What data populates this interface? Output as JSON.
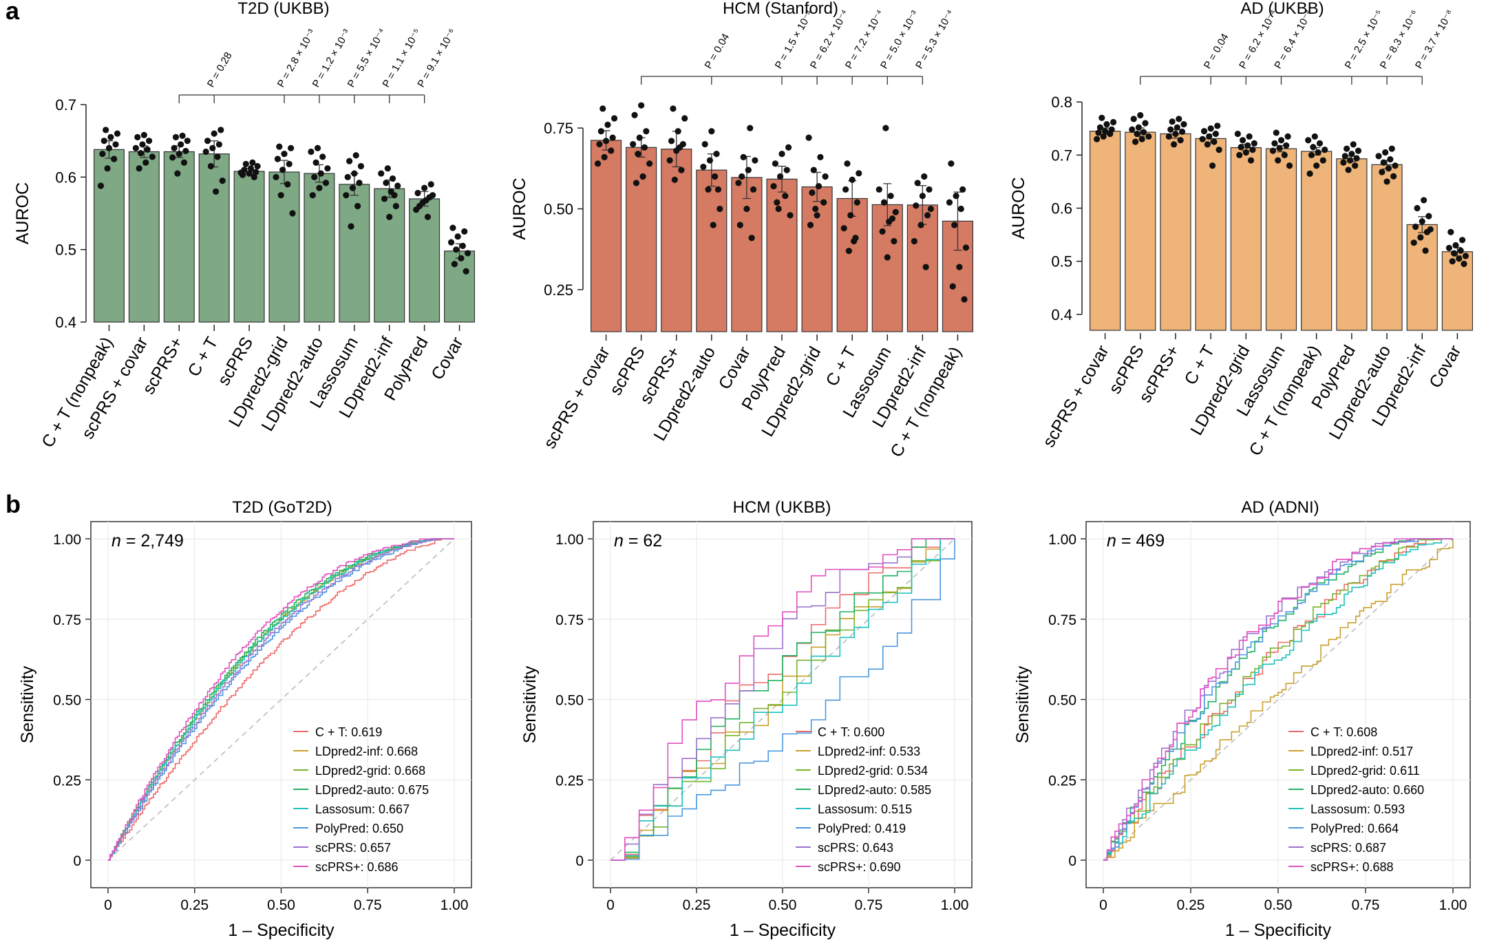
{
  "panel_labels": {
    "a": "a",
    "b": "b"
  },
  "chart_data": [
    {
      "type": "bar",
      "panel": "a",
      "title": "T2D (UKBB)",
      "ylabel": "AUROC",
      "xlabel": "",
      "ylim": [
        0.4,
        0.7
      ],
      "yticks": [
        0.4,
        0.5,
        0.6,
        0.7
      ],
      "tick_labels": [
        "0.4",
        "0.5",
        "0.6",
        "0.7"
      ],
      "color": "#7fa884",
      "categories": [
        "C + T (nonpeak)",
        "scPRS + covar",
        "scPRS+",
        "C + T",
        "scPRS",
        "LDpred2-grid",
        "LDpred2-auto",
        "Lassosum",
        "LDpred2-inf",
        "PolyPred",
        "Covar"
      ],
      "values": [
        0.638,
        0.635,
        0.635,
        0.632,
        0.608,
        0.607,
        0.605,
        0.59,
        0.584,
        0.57,
        0.498
      ],
      "errors": [
        0.012,
        0.008,
        0.008,
        0.018,
        0.004,
        0.016,
        0.012,
        0.015,
        0.012,
        0.01,
        0.01
      ],
      "points": [
        [
          0.588,
          0.612,
          0.625,
          0.632,
          0.64,
          0.645,
          0.65,
          0.655,
          0.66,
          0.665
        ],
        [
          0.612,
          0.62,
          0.628,
          0.633,
          0.638,
          0.64,
          0.645,
          0.65,
          0.655,
          0.658
        ],
        [
          0.605,
          0.62,
          0.627,
          0.632,
          0.636,
          0.64,
          0.645,
          0.65,
          0.655,
          0.657
        ],
        [
          0.58,
          0.595,
          0.615,
          0.628,
          0.635,
          0.64,
          0.645,
          0.65,
          0.66,
          0.665
        ],
        [
          0.6,
          0.603,
          0.605,
          0.607,
          0.61,
          0.612,
          0.615,
          0.618,
          0.62,
          0.606
        ],
        [
          0.55,
          0.575,
          0.59,
          0.6,
          0.61,
          0.618,
          0.625,
          0.632,
          0.64,
          0.642
        ],
        [
          0.575,
          0.585,
          0.592,
          0.6,
          0.605,
          0.612,
          0.62,
          0.628,
          0.635,
          0.64
        ],
        [
          0.532,
          0.56,
          0.575,
          0.585,
          0.592,
          0.6,
          0.605,
          0.615,
          0.622,
          0.63
        ],
        [
          0.545,
          0.56,
          0.57,
          0.58,
          0.588,
          0.592,
          0.598,
          0.605,
          0.612,
          0.575
        ],
        [
          0.545,
          0.555,
          0.565,
          0.572,
          0.578,
          0.585,
          0.59,
          0.56,
          0.568,
          0.575
        ],
        [
          0.47,
          0.48,
          0.488,
          0.495,
          0.5,
          0.505,
          0.51,
          0.518,
          0.525,
          0.53
        ]
      ],
      "comparison": {
        "from": "scPRS+",
        "targets": [
          "C + T",
          "LDpred2-grid",
          "LDpred2-auto",
          "Lassosum",
          "LDpred2-inf",
          "PolyPred"
        ],
        "labels": [
          "P = 0.28",
          "P = 2.8 × 10⁻³",
          "P = 1.2 × 10⁻³",
          "P = 5.5 × 10⁻⁴",
          "P = 1.1 × 10⁻⁵",
          "P = 9.1 × 10⁻⁶"
        ]
      }
    },
    {
      "type": "bar",
      "panel": "a",
      "title": "HCM (Stanford)",
      "ylabel": "AUROC",
      "xlabel": "",
      "ylim": [
        0.12,
        0.88
      ],
      "yticks": [
        0.25,
        0.5,
        0.75
      ],
      "tick_labels": [
        "0.25",
        "0.50",
        "0.75"
      ],
      "color": "#d57b63",
      "categories": [
        "scPRS + covar",
        "scPRS",
        "scPRS+",
        "LDpred2-auto",
        "Covar",
        "PolyPred",
        "LDpred2-grid",
        "C + T",
        "Lassosum",
        "LDpred2-inf",
        "C + T (nonpeak)"
      ],
      "values": [
        0.712,
        0.69,
        0.685,
        0.62,
        0.597,
        0.592,
        0.568,
        0.532,
        0.513,
        0.512,
        0.462
      ],
      "errors": [
        0.03,
        0.03,
        0.055,
        0.05,
        0.065,
        0.04,
        0.045,
        0.055,
        0.065,
        0.06,
        0.09
      ],
      "points": [
        [
          0.64,
          0.66,
          0.68,
          0.7,
          0.71,
          0.72,
          0.74,
          0.76,
          0.78,
          0.81
        ],
        [
          0.58,
          0.6,
          0.64,
          0.67,
          0.69,
          0.7,
          0.72,
          0.74,
          0.79,
          0.82
        ],
        [
          0.59,
          0.62,
          0.65,
          0.68,
          0.7,
          0.71,
          0.74,
          0.78,
          0.81,
          0.69
        ],
        [
          0.45,
          0.5,
          0.56,
          0.6,
          0.63,
          0.65,
          0.67,
          0.7,
          0.74,
          0.56
        ],
        [
          0.41,
          0.45,
          0.5,
          0.56,
          0.6,
          0.62,
          0.65,
          0.66,
          0.75,
          0.58
        ],
        [
          0.48,
          0.5,
          0.54,
          0.57,
          0.6,
          0.62,
          0.64,
          0.67,
          0.69,
          0.52
        ],
        [
          0.45,
          0.48,
          0.52,
          0.55,
          0.57,
          0.6,
          0.62,
          0.66,
          0.72,
          0.5
        ],
        [
          0.37,
          0.41,
          0.44,
          0.48,
          0.52,
          0.56,
          0.59,
          0.61,
          0.64,
          0.4
        ],
        [
          0.35,
          0.4,
          0.43,
          0.46,
          0.49,
          0.52,
          0.54,
          0.56,
          0.75,
          0.47
        ],
        [
          0.32,
          0.4,
          0.45,
          0.48,
          0.51,
          0.54,
          0.56,
          0.58,
          0.6,
          0.5
        ],
        [
          0.22,
          0.26,
          0.32,
          0.38,
          0.45,
          0.5,
          0.52,
          0.54,
          0.56,
          0.64
        ]
      ],
      "comparison": {
        "from": "scPRS",
        "targets": [
          "LDpred2-auto",
          "PolyPred",
          "LDpred2-grid",
          "C + T",
          "Lassosum",
          "LDpred2-inf"
        ],
        "labels": [
          "P = 0.04",
          "P = 1.5 × 10⁻³",
          "P = 6.2 × 10⁻⁴",
          "P = 7.2 × 10⁻⁴",
          "P = 5.0 × 10⁻³",
          "P = 5.3 × 10⁻⁴"
        ]
      }
    },
    {
      "type": "bar",
      "panel": "a",
      "title": "AD (UKBB)",
      "ylabel": "AUROC",
      "xlabel": "",
      "ylim": [
        0.37,
        0.83
      ],
      "yticks": [
        0.4,
        0.5,
        0.6,
        0.7,
        0.8
      ],
      "tick_labels": [
        "0.4",
        "0.5",
        "0.6",
        "0.7",
        "0.8"
      ],
      "color": "#eeb479",
      "categories": [
        "scPRS + covar",
        "scPRS",
        "scPRS+",
        "C + T",
        "LDpred2-grid",
        "Lassosum",
        "C + T (nonpeak)",
        "PolyPred",
        "LDpred2-auto",
        "LDpred2-inf",
        "Covar"
      ],
      "values": [
        0.745,
        0.743,
        0.74,
        0.731,
        0.714,
        0.712,
        0.707,
        0.693,
        0.682,
        0.569,
        0.518
      ],
      "errors": [
        0.006,
        0.008,
        0.008,
        0.008,
        0.006,
        0.006,
        0.007,
        0.005,
        0.008,
        0.015,
        0.008
      ],
      "points": [
        [
          0.73,
          0.735,
          0.74,
          0.742,
          0.745,
          0.748,
          0.752,
          0.758,
          0.762,
          0.77
        ],
        [
          0.725,
          0.73,
          0.735,
          0.74,
          0.743,
          0.748,
          0.752,
          0.76,
          0.768,
          0.775
        ],
        [
          0.72,
          0.728,
          0.735,
          0.74,
          0.744,
          0.748,
          0.752,
          0.758,
          0.763,
          0.768
        ],
        [
          0.68,
          0.71,
          0.72,
          0.725,
          0.73,
          0.735,
          0.74,
          0.745,
          0.75,
          0.755
        ],
        [
          0.69,
          0.7,
          0.705,
          0.71,
          0.715,
          0.718,
          0.722,
          0.728,
          0.735,
          0.74
        ],
        [
          0.68,
          0.69,
          0.7,
          0.708,
          0.713,
          0.718,
          0.722,
          0.728,
          0.735,
          0.742
        ],
        [
          0.665,
          0.68,
          0.69,
          0.7,
          0.705,
          0.71,
          0.715,
          0.722,
          0.728,
          0.735
        ],
        [
          0.672,
          0.68,
          0.686,
          0.69,
          0.694,
          0.698,
          0.702,
          0.708,
          0.712,
          0.72
        ],
        [
          0.65,
          0.66,
          0.668,
          0.675,
          0.68,
          0.686,
          0.692,
          0.698,
          0.705,
          0.712
        ],
        [
          0.52,
          0.535,
          0.545,
          0.555,
          0.565,
          0.575,
          0.585,
          0.6,
          0.615,
          0.56
        ],
        [
          0.495,
          0.5,
          0.505,
          0.51,
          0.515,
          0.52,
          0.525,
          0.53,
          0.54,
          0.555
        ]
      ],
      "comparison": {
        "from": "scPRS",
        "targets": [
          "C + T",
          "LDpred2-grid",
          "Lassosum",
          "PolyPred",
          "LDpred2-auto",
          "LDpred2-inf"
        ],
        "labels": [
          "P = 0.04",
          "P = 6.2 × 10⁻⁴",
          "P = 6.4 × 10⁻⁴",
          "P = 2.5 × 10⁻⁵",
          "P = 8.3 × 10⁻⁶",
          "P = 3.7 × 10⁻⁸"
        ]
      }
    },
    {
      "type": "line",
      "panel": "b",
      "title": "T2D (GoT2D)",
      "xlabel": "1 – Specificity",
      "ylabel": "Sensitivity",
      "xlim": [
        0,
        1
      ],
      "ylim": [
        0,
        1
      ],
      "xticks": [
        0,
        0.25,
        0.5,
        0.75,
        1
      ],
      "yticks": [
        0,
        0.25,
        0.5,
        0.75,
        1
      ],
      "xtick_labels": [
        "0",
        "0.25",
        "0.50",
        "0.75",
        "1.00"
      ],
      "ytick_labels": [
        "0",
        "0.25",
        "0.50",
        "0.75",
        "1.00"
      ],
      "n_prefix": "n",
      "n_text": " = 2,749",
      "legend_position": "bottom-right",
      "series": [
        {
          "name": "C + T",
          "legend": "C + T: 0.619",
          "auc": 0.619,
          "color": "#ee6a6a"
        },
        {
          "name": "LDpred2-inf",
          "legend": "LDpred2-inf: 0.668",
          "auc": 0.668,
          "color": "#c9a02c"
        },
        {
          "name": "LDpred2-grid",
          "legend": "LDpred2-grid: 0.668",
          "auc": 0.668,
          "color": "#79b32c"
        },
        {
          "name": "LDpred2-auto",
          "legend": "LDpred2-auto: 0.675",
          "auc": 0.675,
          "color": "#1fb060"
        },
        {
          "name": "Lassosum",
          "legend": "Lassosum: 0.667",
          "auc": 0.667,
          "color": "#1bc0bd"
        },
        {
          "name": "PolyPred",
          "legend": "PolyPred: 0.650",
          "auc": 0.65,
          "color": "#4a97e0"
        },
        {
          "name": "scPRS",
          "legend": "scPRS: 0.657",
          "auc": 0.657,
          "color": "#9b72cf"
        },
        {
          "name": "scPRS+",
          "legend": "scPRS+: 0.686",
          "auc": 0.686,
          "color": "#e24fc0"
        }
      ]
    },
    {
      "type": "line",
      "panel": "b",
      "title": "HCM (UKBB)",
      "xlabel": "1 – Specificity",
      "ylabel": "Sensitivity",
      "xlim": [
        0,
        1
      ],
      "ylim": [
        0,
        1
      ],
      "xticks": [
        0,
        0.25,
        0.5,
        0.75,
        1
      ],
      "yticks": [
        0,
        0.25,
        0.5,
        0.75,
        1
      ],
      "xtick_labels": [
        "0",
        "0.25",
        "0.50",
        "0.75",
        "1.00"
      ],
      "ytick_labels": [
        "0",
        "0.25",
        "0.50",
        "0.75",
        "1.00"
      ],
      "n_prefix": "n",
      "n_text": " = 62",
      "legend_position": "bottom-right",
      "series": [
        {
          "name": "C + T",
          "legend": "C + T: 0.600",
          "auc": 0.6,
          "color": "#ee6a6a"
        },
        {
          "name": "LDpred2-inf",
          "legend": "LDpred2-inf: 0.533",
          "auc": 0.533,
          "color": "#c9a02c"
        },
        {
          "name": "LDpred2-grid",
          "legend": "LDpred2-grid: 0.534",
          "auc": 0.534,
          "color": "#79b32c"
        },
        {
          "name": "LDpred2-auto",
          "legend": "LDpred2-auto: 0.585",
          "auc": 0.585,
          "color": "#1fb060"
        },
        {
          "name": "Lassosum",
          "legend": "Lassosum: 0.515",
          "auc": 0.515,
          "color": "#1bc0bd"
        },
        {
          "name": "PolyPred",
          "legend": "PolyPred: 0.419",
          "auc": 0.419,
          "color": "#4a97e0"
        },
        {
          "name": "scPRS",
          "legend": "scPRS: 0.643",
          "auc": 0.643,
          "color": "#9b72cf"
        },
        {
          "name": "scPRS+",
          "legend": "scPRS+: 0.690",
          "auc": 0.69,
          "color": "#e24fc0"
        }
      ]
    },
    {
      "type": "line",
      "panel": "b",
      "title": "AD (ADNI)",
      "xlabel": "1 – Specificity",
      "ylabel": "Sensitivity",
      "xlim": [
        0,
        1
      ],
      "ylim": [
        0,
        1
      ],
      "xticks": [
        0,
        0.25,
        0.5,
        0.75,
        1
      ],
      "yticks": [
        0,
        0.25,
        0.5,
        0.75,
        1
      ],
      "xtick_labels": [
        "0",
        "0.25",
        "0.50",
        "0.75",
        "1.00"
      ],
      "ytick_labels": [
        "0",
        "0.25",
        "0.50",
        "0.75",
        "1.00"
      ],
      "n_prefix": "n",
      "n_text": " = 469",
      "legend_position": "bottom-right",
      "series": [
        {
          "name": "C + T",
          "legend": "C + T: 0.608",
          "auc": 0.608,
          "color": "#ee6a6a"
        },
        {
          "name": "LDpred2-inf",
          "legend": "LDpred2-inf: 0.517",
          "auc": 0.517,
          "color": "#c9a02c"
        },
        {
          "name": "LDpred2-grid",
          "legend": "LDpred2-grid: 0.611",
          "auc": 0.611,
          "color": "#79b32c"
        },
        {
          "name": "LDpred2-auto",
          "legend": "LDpred2-auto: 0.660",
          "auc": 0.66,
          "color": "#1fb060"
        },
        {
          "name": "Lassosum",
          "legend": "Lassosum: 0.593",
          "auc": 0.593,
          "color": "#1bc0bd"
        },
        {
          "name": "PolyPred",
          "legend": "PolyPred: 0.664",
          "auc": 0.664,
          "color": "#4a97e0"
        },
        {
          "name": "scPRS",
          "legend": "scPRS: 0.687",
          "auc": 0.687,
          "color": "#9b72cf"
        },
        {
          "name": "scPRS+",
          "legend": "scPRS+: 0.688",
          "auc": 0.688,
          "color": "#e24fc0"
        }
      ]
    }
  ]
}
